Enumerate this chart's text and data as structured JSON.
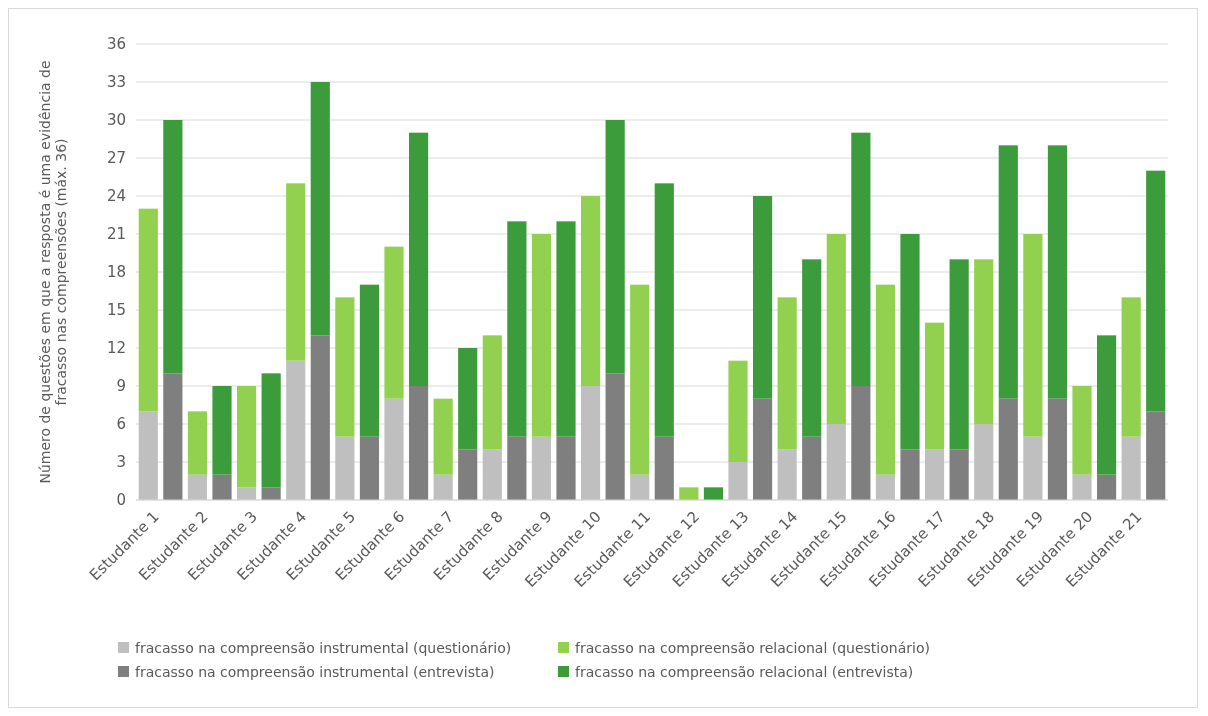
{
  "chart_data": {
    "type": "bar",
    "stacked": true,
    "ylabel": "Número de questões em que a resposta é uma evidência de fracasso nas compreensões (máx. 36)",
    "categories": [
      "Estudante 1",
      null,
      "Estudante 2",
      null,
      "Estudante 3",
      null,
      "Estudante 4",
      null,
      "Estudante 5",
      null,
      "Estudante 6",
      null,
      "Estudante 7",
      null,
      "Estudante 8",
      null,
      "Estudante 9",
      null,
      "Estudante 10",
      null,
      "Estudante 11",
      null,
      "Estudante 12",
      null,
      "Estudante 13",
      null,
      "Estudante 14",
      null,
      "Estudante 15",
      null,
      "Estudante 16",
      null,
      "Estudante 17",
      null,
      "Estudante 18",
      null,
      "Estudante 19",
      null,
      "Estudante 20",
      null,
      "Estudante 21",
      null
    ],
    "series": [
      {
        "name": "fracasso na compreensão instrumental (questionário)",
        "color": "#bfbfbf",
        "values": [
          7,
          null,
          2,
          null,
          1,
          null,
          11,
          null,
          5,
          null,
          8,
          null,
          2,
          null,
          4,
          null,
          5,
          null,
          9,
          null,
          2,
          null,
          0,
          null,
          3,
          null,
          4,
          null,
          6,
          null,
          2,
          null,
          4,
          null,
          6,
          null,
          5,
          null,
          2,
          null,
          5,
          null
        ]
      },
      {
        "name": "fracasso na compreensão relacional (questionário)",
        "color": "#92d050",
        "values": [
          16,
          null,
          5,
          null,
          8,
          null,
          14,
          null,
          11,
          null,
          12,
          null,
          6,
          null,
          9,
          null,
          16,
          null,
          15,
          null,
          15,
          null,
          1,
          null,
          8,
          null,
          12,
          null,
          15,
          null,
          15,
          null,
          10,
          null,
          13,
          null,
          16,
          null,
          7,
          null,
          11,
          null
        ]
      },
      {
        "name": "fracasso na compreensão instrumental (entrevista)",
        "color": "#7f7f7f",
        "values": [
          null,
          10,
          null,
          2,
          null,
          1,
          null,
          13,
          null,
          5,
          null,
          9,
          null,
          4,
          null,
          5,
          null,
          5,
          null,
          10,
          null,
          5,
          null,
          0,
          null,
          8,
          null,
          5,
          null,
          9,
          null,
          4,
          null,
          4,
          null,
          8,
          null,
          8,
          null,
          2,
          null,
          7
        ]
      },
      {
        "name": "fracasso na compreensão relacional (entrevista)",
        "color": "#3c9c3c",
        "values": [
          null,
          20,
          null,
          7,
          null,
          9,
          null,
          20,
          null,
          12,
          null,
          20,
          null,
          8,
          null,
          17,
          null,
          17,
          null,
          20,
          null,
          20,
          null,
          1,
          null,
          16,
          null,
          14,
          null,
          20,
          null,
          17,
          null,
          15,
          null,
          20,
          null,
          20,
          null,
          11,
          null,
          19
        ]
      }
    ],
    "ylim": [
      0,
      36
    ],
    "yticks": [
      0,
      3,
      6,
      9,
      12,
      15,
      18,
      21,
      24,
      27,
      30,
      33,
      36
    ],
    "grid": "y",
    "legend": "bottom"
  }
}
